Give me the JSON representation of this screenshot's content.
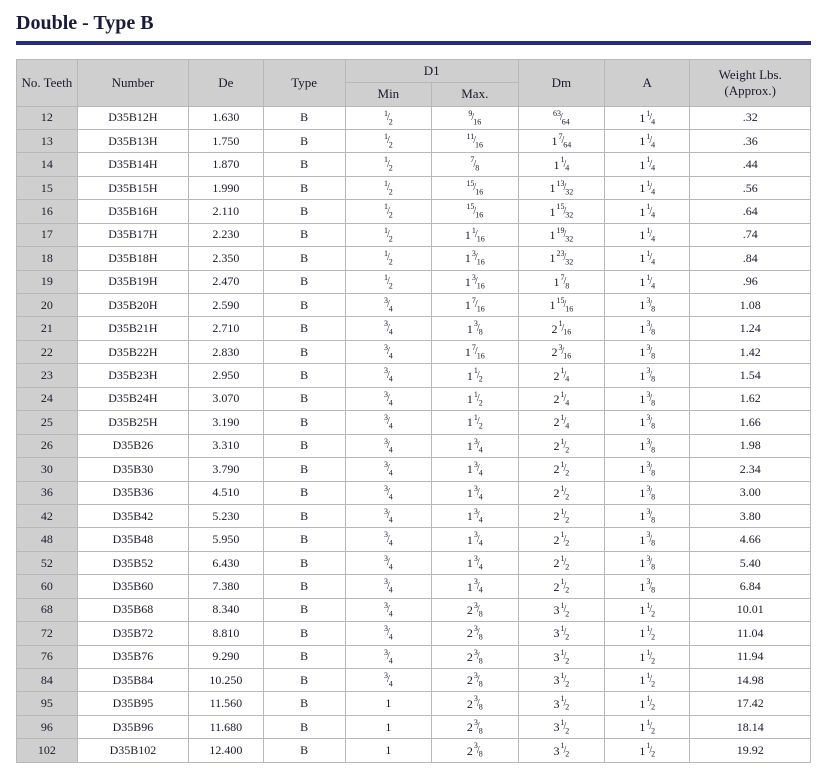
{
  "title": "Double - Type B",
  "columns": {
    "teeth": "No. Teeth",
    "number": "Number",
    "de": "De",
    "type": "Type",
    "d1": "D1",
    "min": "Min",
    "max": "Max.",
    "dm": "Dm",
    "a": "A",
    "weight": "Weight Lbs. (Approx.)"
  },
  "rows": [
    {
      "teeth": "12",
      "number": "D35B12H",
      "de": "1.630",
      "type": "B",
      "min": {
        "n": "1",
        "d": "2"
      },
      "max": {
        "n": "9",
        "d": "16"
      },
      "dm": {
        "n": "63",
        "d": "64"
      },
      "a": {
        "w": "1",
        "n": "1",
        "d": "4"
      },
      "weight": ".32"
    },
    {
      "teeth": "13",
      "number": "D35B13H",
      "de": "1.750",
      "type": "B",
      "min": {
        "n": "1",
        "d": "2"
      },
      "max": {
        "n": "11",
        "d": "16"
      },
      "dm": {
        "w": "1",
        "n": "7",
        "d": "64"
      },
      "a": {
        "w": "1",
        "n": "1",
        "d": "4"
      },
      "weight": ".36"
    },
    {
      "teeth": "14",
      "number": "D35B14H",
      "de": "1.870",
      "type": "B",
      "min": {
        "n": "1",
        "d": "2"
      },
      "max": {
        "n": "7",
        "d": "8"
      },
      "dm": {
        "w": "1",
        "n": "1",
        "d": "4"
      },
      "a": {
        "w": "1",
        "n": "1",
        "d": "4"
      },
      "weight": ".44"
    },
    {
      "teeth": "15",
      "number": "D35B15H",
      "de": "1.990",
      "type": "B",
      "min": {
        "n": "1",
        "d": "2"
      },
      "max": {
        "n": "15",
        "d": "16"
      },
      "dm": {
        "w": "1",
        "n": "13",
        "d": "32"
      },
      "a": {
        "w": "1",
        "n": "1",
        "d": "4"
      },
      "weight": ".56"
    },
    {
      "teeth": "16",
      "number": "D35B16H",
      "de": "2.110",
      "type": "B",
      "min": {
        "n": "1",
        "d": "2"
      },
      "max": {
        "n": "15",
        "d": "16"
      },
      "dm": {
        "w": "1",
        "n": "15",
        "d": "32"
      },
      "a": {
        "w": "1",
        "n": "1",
        "d": "4"
      },
      "weight": ".64"
    },
    {
      "teeth": "17",
      "number": "D35B17H",
      "de": "2.230",
      "type": "B",
      "min": {
        "n": "1",
        "d": "2"
      },
      "max": {
        "w": "1",
        "n": "1",
        "d": "16"
      },
      "dm": {
        "w": "1",
        "n": "19",
        "d": "32"
      },
      "a": {
        "w": "1",
        "n": "1",
        "d": "4"
      },
      "weight": ".74"
    },
    {
      "teeth": "18",
      "number": "D35B18H",
      "de": "2.350",
      "type": "B",
      "min": {
        "n": "1",
        "d": "2"
      },
      "max": {
        "w": "1",
        "n": "3",
        "d": "16"
      },
      "dm": {
        "w": "1",
        "n": "23",
        "d": "32"
      },
      "a": {
        "w": "1",
        "n": "1",
        "d": "4"
      },
      "weight": ".84"
    },
    {
      "teeth": "19",
      "number": "D35B19H",
      "de": "2.470",
      "type": "B",
      "min": {
        "n": "1",
        "d": "2"
      },
      "max": {
        "w": "1",
        "n": "3",
        "d": "16"
      },
      "dm": {
        "w": "1",
        "n": "7",
        "d": "8"
      },
      "a": {
        "w": "1",
        "n": "1",
        "d": "4"
      },
      "weight": ".96"
    },
    {
      "teeth": "20",
      "number": "D35B20H",
      "de": "2.590",
      "type": "B",
      "min": {
        "n": "3",
        "d": "4"
      },
      "max": {
        "w": "1",
        "n": "7",
        "d": "16"
      },
      "dm": {
        "w": "1",
        "n": "15",
        "d": "16"
      },
      "a": {
        "w": "1",
        "n": "3",
        "d": "8"
      },
      "weight": "1.08"
    },
    {
      "teeth": "21",
      "number": "D35B21H",
      "de": "2.710",
      "type": "B",
      "min": {
        "n": "3",
        "d": "4"
      },
      "max": {
        "w": "1",
        "n": "3",
        "d": "8"
      },
      "dm": {
        "w": "2",
        "n": "1",
        "d": "16"
      },
      "a": {
        "w": "1",
        "n": "3",
        "d": "8"
      },
      "weight": "1.24"
    },
    {
      "teeth": "22",
      "number": "D35B22H",
      "de": "2.830",
      "type": "B",
      "min": {
        "n": "3",
        "d": "4"
      },
      "max": {
        "w": "1",
        "n": "7",
        "d": "16"
      },
      "dm": {
        "w": "2",
        "n": "3",
        "d": "16"
      },
      "a": {
        "w": "1",
        "n": "3",
        "d": "8"
      },
      "weight": "1.42"
    },
    {
      "teeth": "23",
      "number": "D35B23H",
      "de": "2.950",
      "type": "B",
      "min": {
        "n": "3",
        "d": "4"
      },
      "max": {
        "w": "1",
        "n": "1",
        "d": "2"
      },
      "dm": {
        "w": "2",
        "n": "1",
        "d": "4"
      },
      "a": {
        "w": "1",
        "n": "3",
        "d": "8"
      },
      "weight": "1.54"
    },
    {
      "teeth": "24",
      "number": "D35B24H",
      "de": "3.070",
      "type": "B",
      "min": {
        "n": "3",
        "d": "4"
      },
      "max": {
        "w": "1",
        "n": "1",
        "d": "2"
      },
      "dm": {
        "w": "2",
        "n": "1",
        "d": "4"
      },
      "a": {
        "w": "1",
        "n": "3",
        "d": "8"
      },
      "weight": "1.62"
    },
    {
      "teeth": "25",
      "number": "D35B25H",
      "de": "3.190",
      "type": "B",
      "min": {
        "n": "3",
        "d": "4"
      },
      "max": {
        "w": "1",
        "n": "1",
        "d": "2"
      },
      "dm": {
        "w": "2",
        "n": "1",
        "d": "4"
      },
      "a": {
        "w": "1",
        "n": "3",
        "d": "8"
      },
      "weight": "1.66"
    },
    {
      "teeth": "26",
      "number": "D35B26",
      "de": "3.310",
      "type": "B",
      "min": {
        "n": "3",
        "d": "4"
      },
      "max": {
        "w": "1",
        "n": "3",
        "d": "4"
      },
      "dm": {
        "w": "2",
        "n": "1",
        "d": "2"
      },
      "a": {
        "w": "1",
        "n": "3",
        "d": "8"
      },
      "weight": "1.98"
    },
    {
      "teeth": "30",
      "number": "D35B30",
      "de": "3.790",
      "type": "B",
      "min": {
        "n": "3",
        "d": "4"
      },
      "max": {
        "w": "1",
        "n": "3",
        "d": "4"
      },
      "dm": {
        "w": "2",
        "n": "1",
        "d": "2"
      },
      "a": {
        "w": "1",
        "n": "3",
        "d": "8"
      },
      "weight": "2.34"
    },
    {
      "teeth": "36",
      "number": "D35B36",
      "de": "4.510",
      "type": "B",
      "min": {
        "n": "3",
        "d": "4"
      },
      "max": {
        "w": "1",
        "n": "3",
        "d": "4"
      },
      "dm": {
        "w": "2",
        "n": "1",
        "d": "2"
      },
      "a": {
        "w": "1",
        "n": "3",
        "d": "8"
      },
      "weight": "3.00"
    },
    {
      "teeth": "42",
      "number": "D35B42",
      "de": "5.230",
      "type": "B",
      "min": {
        "n": "3",
        "d": "4"
      },
      "max": {
        "w": "1",
        "n": "3",
        "d": "4"
      },
      "dm": {
        "w": "2",
        "n": "1",
        "d": "2"
      },
      "a": {
        "w": "1",
        "n": "3",
        "d": "8"
      },
      "weight": "3.80"
    },
    {
      "teeth": "48",
      "number": "D35B48",
      "de": "5.950",
      "type": "B",
      "min": {
        "n": "3",
        "d": "4"
      },
      "max": {
        "w": "1",
        "n": "3",
        "d": "4"
      },
      "dm": {
        "w": "2",
        "n": "1",
        "d": "2"
      },
      "a": {
        "w": "1",
        "n": "3",
        "d": "8"
      },
      "weight": "4.66"
    },
    {
      "teeth": "52",
      "number": "D35B52",
      "de": "6.430",
      "type": "B",
      "min": {
        "n": "3",
        "d": "4"
      },
      "max": {
        "w": "1",
        "n": "3",
        "d": "4"
      },
      "dm": {
        "w": "2",
        "n": "1",
        "d": "2"
      },
      "a": {
        "w": "1",
        "n": "3",
        "d": "8"
      },
      "weight": "5.40"
    },
    {
      "teeth": "60",
      "number": "D35B60",
      "de": "7.380",
      "type": "B",
      "min": {
        "n": "3",
        "d": "4"
      },
      "max": {
        "w": "1",
        "n": "3",
        "d": "4"
      },
      "dm": {
        "w": "2",
        "n": "1",
        "d": "2"
      },
      "a": {
        "w": "1",
        "n": "3",
        "d": "8"
      },
      "weight": "6.84"
    },
    {
      "teeth": "68",
      "number": "D35B68",
      "de": "8.340",
      "type": "B",
      "min": {
        "n": "3",
        "d": "4"
      },
      "max": {
        "w": "2",
        "n": "3",
        "d": "8"
      },
      "dm": {
        "w": "3",
        "n": "1",
        "d": "2"
      },
      "a": {
        "w": "1",
        "n": "1",
        "d": "2"
      },
      "weight": "10.01"
    },
    {
      "teeth": "72",
      "number": "D35B72",
      "de": "8.810",
      "type": "B",
      "min": {
        "n": "3",
        "d": "4"
      },
      "max": {
        "w": "2",
        "n": "3",
        "d": "8"
      },
      "dm": {
        "w": "3",
        "n": "1",
        "d": "2"
      },
      "a": {
        "w": "1",
        "n": "1",
        "d": "2"
      },
      "weight": "11.04"
    },
    {
      "teeth": "76",
      "number": "D35B76",
      "de": "9.290",
      "type": "B",
      "min": {
        "n": "3",
        "d": "4"
      },
      "max": {
        "w": "2",
        "n": "3",
        "d": "8"
      },
      "dm": {
        "w": "3",
        "n": "1",
        "d": "2"
      },
      "a": {
        "w": "1",
        "n": "1",
        "d": "2"
      },
      "weight": "11.94"
    },
    {
      "teeth": "84",
      "number": "D35B84",
      "de": "10.250",
      "type": "B",
      "min": {
        "n": "3",
        "d": "4"
      },
      "max": {
        "w": "2",
        "n": "3",
        "d": "8"
      },
      "dm": {
        "w": "3",
        "n": "1",
        "d": "2"
      },
      "a": {
        "w": "1",
        "n": "1",
        "d": "2"
      },
      "weight": "14.98"
    },
    {
      "teeth": "95",
      "number": "D35B95",
      "de": "11.560",
      "type": "B",
      "min": "1",
      "max": {
        "w": "2",
        "n": "3",
        "d": "8"
      },
      "dm": {
        "w": "3",
        "n": "1",
        "d": "2"
      },
      "a": {
        "w": "1",
        "n": "1",
        "d": "2"
      },
      "weight": "17.42"
    },
    {
      "teeth": "96",
      "number": "D35B96",
      "de": "11.680",
      "type": "B",
      "min": "1",
      "max": {
        "w": "2",
        "n": "3",
        "d": "8"
      },
      "dm": {
        "w": "3",
        "n": "1",
        "d": "2"
      },
      "a": {
        "w": "1",
        "n": "1",
        "d": "2"
      },
      "weight": "18.14"
    },
    {
      "teeth": "102",
      "number": "D35B102",
      "de": "12.400",
      "type": "B",
      "min": "1",
      "max": {
        "w": "2",
        "n": "3",
        "d": "8"
      },
      "dm": {
        "w": "3",
        "n": "1",
        "d": "2"
      },
      "a": {
        "w": "1",
        "n": "1",
        "d": "2"
      },
      "weight": "19.92"
    }
  ]
}
